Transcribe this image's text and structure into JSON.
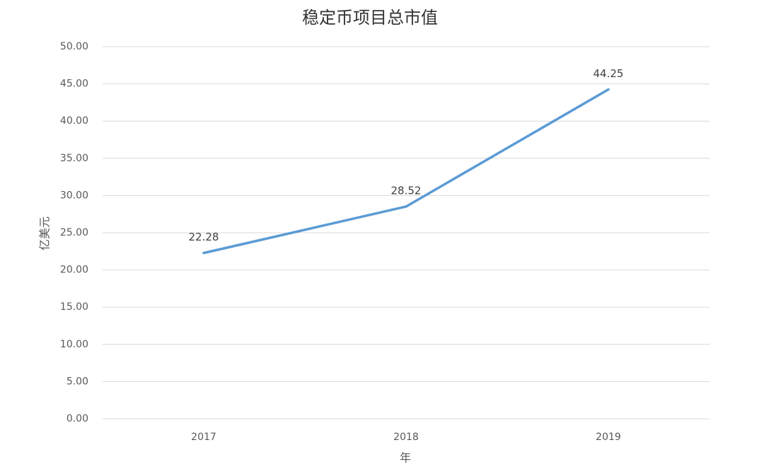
{
  "chart_data": {
    "type": "line",
    "title": "稳定币项目总市值",
    "x_label": "年",
    "y_label": "亿美元",
    "categories": [
      "2017",
      "2018",
      "2019"
    ],
    "values": [
      22.28,
      28.52,
      44.25
    ],
    "color": "#5b9bd5",
    "ylim": [
      0,
      50
    ],
    "yticks": [
      {
        "value": 0,
        "label": "0.00"
      },
      {
        "value": 5,
        "label": "5.00"
      },
      {
        "value": 10,
        "label": "10.00"
      },
      {
        "value": 15,
        "label": "15.00"
      },
      {
        "value": 20,
        "label": "20.00"
      },
      {
        "value": 25,
        "label": "25.00"
      },
      {
        "value": 30,
        "label": "30.00"
      },
      {
        "value": 35,
        "label": "35.00"
      },
      {
        "value": 40,
        "label": "40.00"
      },
      {
        "value": 45,
        "label": "45.00"
      },
      {
        "value": 50,
        "label": "50.00"
      }
    ],
    "grid": true
  }
}
